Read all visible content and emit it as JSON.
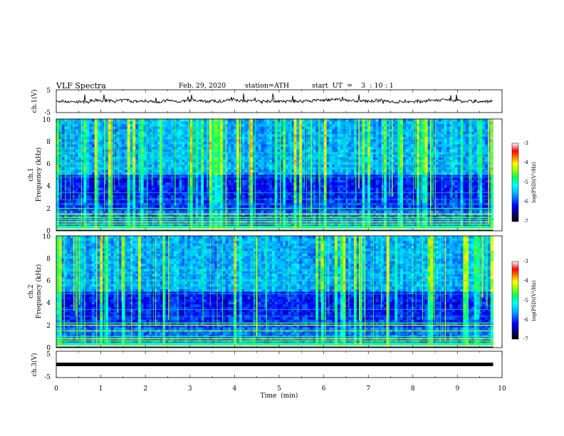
{
  "header": {
    "title": "VLF  Spectra",
    "date": "Feb. 29, 2020",
    "station": "station=ATH",
    "start": "start  UT  =    3  : 10 : 1"
  },
  "chart_data": {
    "type": "heatmap",
    "xlabel": "Time  (min)",
    "xlim": [
      0,
      10
    ],
    "x_ticks": [
      "0",
      "1",
      "2",
      "3",
      "4",
      "5",
      "6",
      "7",
      "8",
      "9",
      "10"
    ],
    "data_end_min": 9.8,
    "panels": [
      {
        "id": "ch1_waveform",
        "type": "line",
        "ylabel": "ch.1(V)",
        "ylim": [
          -5,
          5
        ],
        "y_ticks": [
          "5",
          "-5"
        ],
        "baseline": 0
      },
      {
        "id": "ch1_spectrogram",
        "type": "heatmap",
        "ylabel_top": "ch.1",
        "ylabel": "Frequency  (kHz)",
        "ylim": [
          0,
          10
        ],
        "y_ticks": [
          "0",
          "2",
          "4",
          "6",
          "8",
          "10"
        ],
        "colorbar": {
          "label": "log(PSD)(V²/Hz)",
          "range": [
            -7,
            -3
          ],
          "ticks": [
            "-3",
            "-4",
            "-5",
            "-6",
            "-7"
          ]
        },
        "bands_khz": [
          0.3,
          0.6,
          0.8,
          1.0,
          1.2,
          1.5,
          2.0,
          2.4,
          2.8,
          3.4,
          4.8,
          5.6,
          6.0,
          6.6,
          7.0,
          8.6
        ]
      },
      {
        "id": "ch2_spectrogram",
        "type": "heatmap",
        "ylabel_top": "ch.2",
        "ylabel": "Frequency  (kHz)",
        "ylim": [
          0,
          10
        ],
        "y_ticks": [
          "0",
          "2",
          "4",
          "6",
          "8",
          "10"
        ],
        "colorbar": {
          "label": "log(PSD)(V²/Hz)",
          "range": [
            -7,
            -3
          ],
          "ticks": [
            "-3",
            "-4",
            "-5",
            "-6",
            "-7"
          ]
        },
        "bands_khz": [
          0.3,
          0.6,
          0.8,
          1.0,
          1.5,
          2.0,
          2.2,
          2.8,
          3.4,
          4.8,
          5.6,
          6.0,
          6.6,
          7.0,
          8.6
        ]
      },
      {
        "id": "ch3_waveform",
        "type": "line",
        "ylabel": "ch.3(V)",
        "ylim": [
          -5,
          5
        ],
        "y_ticks": [
          "5",
          "-5"
        ],
        "baseline": 0
      }
    ]
  }
}
